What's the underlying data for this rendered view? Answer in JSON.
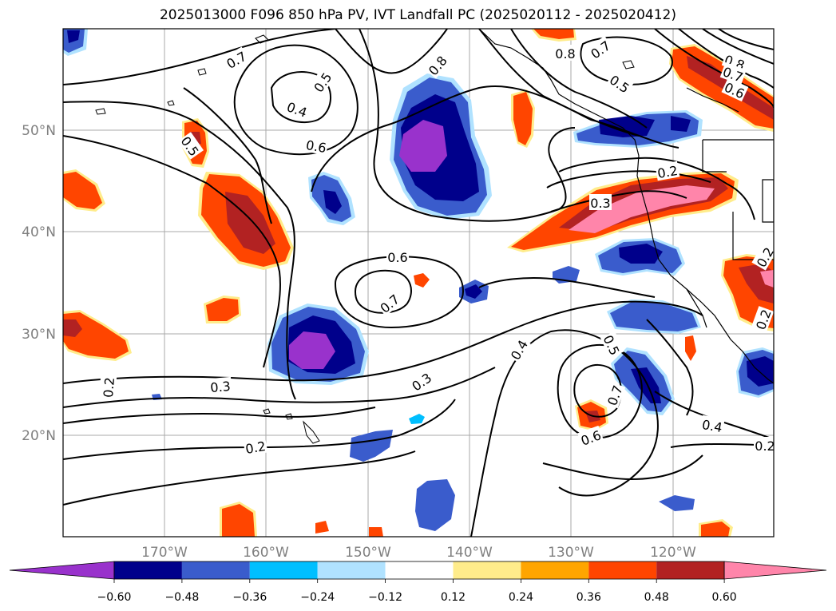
{
  "title": "2025013000 F096 850 hPa PV, IVT Landfall PC (2025020112 - 2025020412)",
  "map": {
    "lon_labels": [
      "170°W",
      "160°W",
      "150°W",
      "140°W",
      "130°W",
      "120°W"
    ],
    "lat_labels": [
      "50°N",
      "40°N",
      "30°N",
      "20°N"
    ],
    "gridlines": true
  },
  "contour_labels": [
    "0.7",
    "0.5",
    "0.4",
    "0.6",
    "0.5",
    "0.8",
    "0.8",
    "0.7",
    "0.5",
    "0.8",
    "0.7",
    "0.6",
    "0.2",
    "0.3",
    "0.6",
    "0.7",
    "0.3",
    "0.3",
    "0.2",
    "0.2",
    "0.4",
    "0.5",
    "0.7",
    "0.6",
    "0.4",
    "0.2",
    "0.2",
    "0.2"
  ],
  "colorbar": {
    "tick_labels": [
      "−0.60",
      "−0.48",
      "−0.36",
      "−0.24",
      "−0.12",
      "0.12",
      "0.24",
      "0.36",
      "0.48",
      "0.60"
    ],
    "colors": [
      "#9932cc",
      "#00008b",
      "#3a5ccc",
      "#00bfff",
      "#b0e2ff",
      "#ffffff",
      "#ffec8b",
      "#ffa500",
      "#ff4500",
      "#b22222",
      "#ff85aa"
    ],
    "extend": "both"
  },
  "fill_colors": {
    "purple": "#9932cc",
    "navy": "#00008b",
    "blue": "#3a5ccc",
    "cyan": "#00bfff",
    "ltblue": "#b0e2ff",
    "yellow": "#ffec8b",
    "orange": "#ffa500",
    "red": "#ff4500",
    "brick": "#b22222",
    "pink": "#ff85aa"
  }
}
